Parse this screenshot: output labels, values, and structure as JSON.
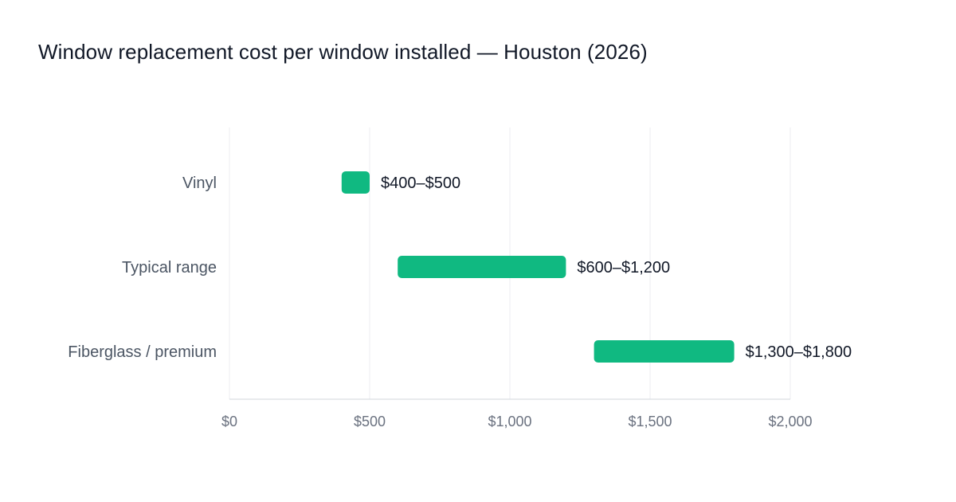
{
  "chart_data": {
    "type": "bar",
    "subtype": "floating-range-horizontal",
    "title": "Window replacement cost per window installed — Houston (2026)",
    "xlabel": "",
    "ylabel": "",
    "categories": [
      "Vinyl",
      "Typical range",
      "Fiberglass / premium"
    ],
    "ranges": [
      {
        "category": "Vinyl",
        "low": 400,
        "high": 500,
        "label": "$400–$500"
      },
      {
        "category": "Typical range",
        "low": 600,
        "high": 1200,
        "label": "$600–$1,200"
      },
      {
        "category": "Fiberglass / premium",
        "low": 1300,
        "high": 1800,
        "label": "$1,300–$1,800"
      }
    ],
    "xlim": [
      0,
      2000
    ],
    "xticks": [
      0,
      500,
      1000,
      1500,
      2000
    ],
    "xtick_labels": [
      "$0",
      "$500",
      "$1,000",
      "$1,500",
      "$2,000"
    ],
    "grid": true,
    "legend": "none",
    "bar_color": "#10b981"
  }
}
